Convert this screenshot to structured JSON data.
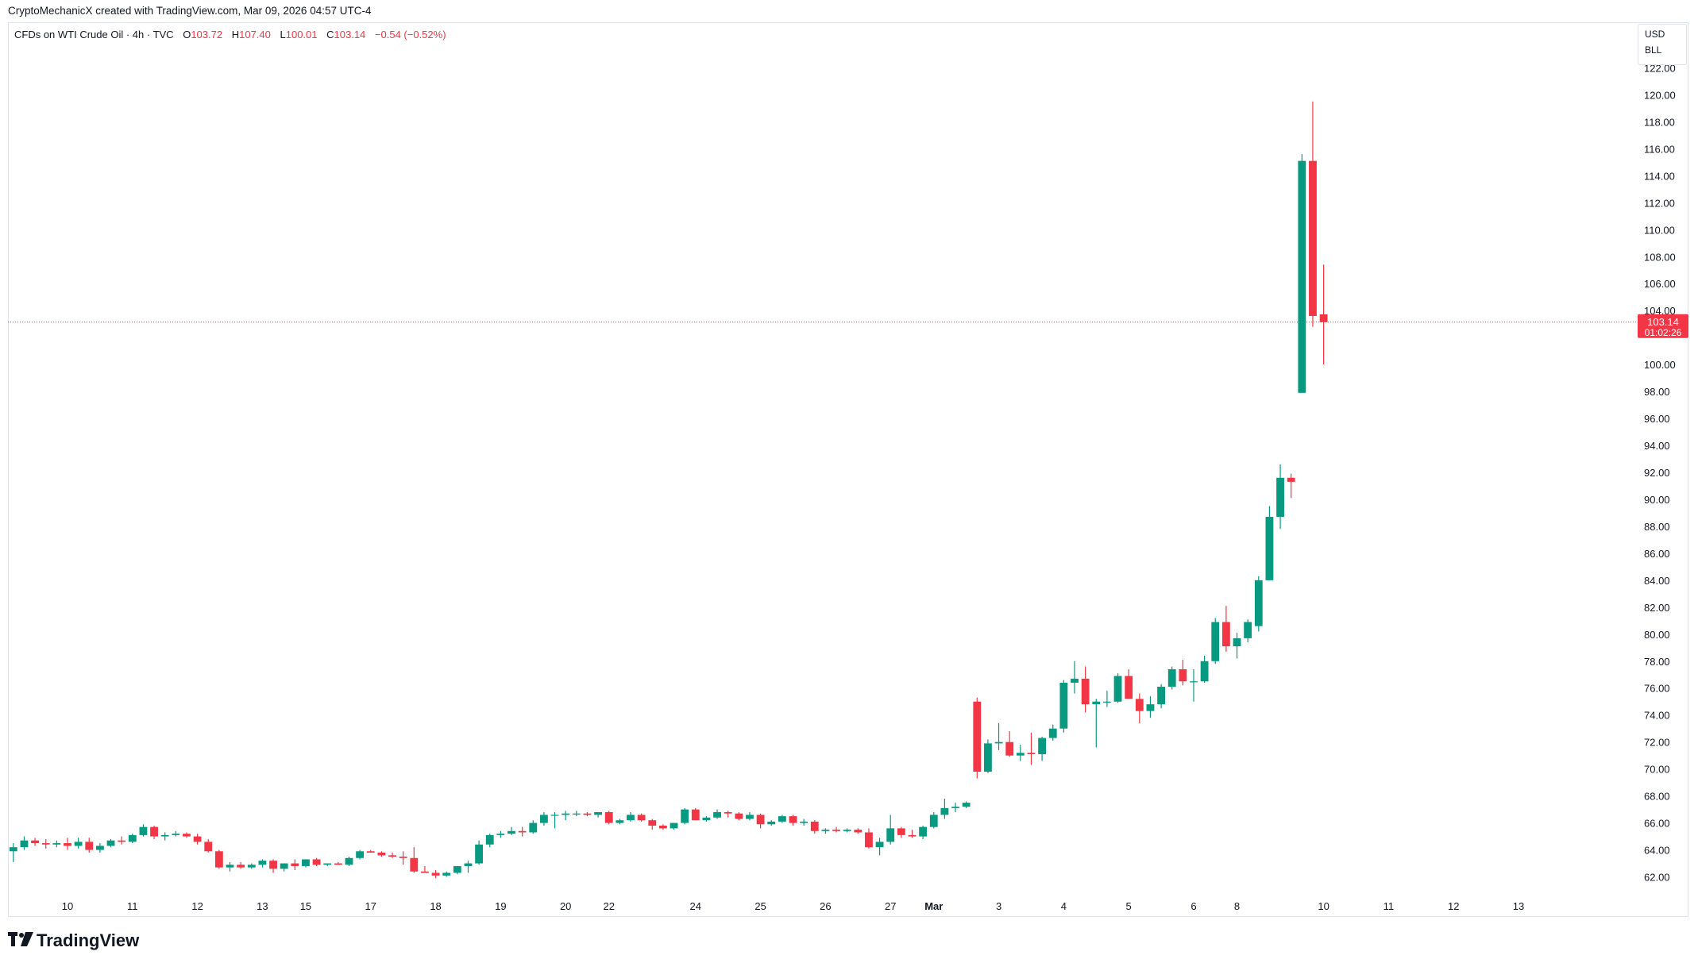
{
  "header": {
    "attribution": "CryptoMechanicX created with TradingView.com, Mar 09, 2026 04:57 UTC-4"
  },
  "legend": {
    "symbol": "CFDs on WTI Crude Oil · 4h · TVC",
    "o_label": "O",
    "o_value": "103.72",
    "h_label": "H",
    "h_value": "107.40",
    "l_label": "L",
    "l_value": "100.01",
    "c_label": "C",
    "c_value": "103.14",
    "change": "−0.54 (−0.52%)"
  },
  "unit_box": {
    "currency": "USD",
    "unit": "BLL"
  },
  "price_tag": {
    "price": "103.14",
    "countdown": "01:02:26"
  },
  "footer": {
    "logo_text": "TradingView"
  },
  "colors": {
    "up": "#089981",
    "down": "#f23645",
    "grid_text": "#131722",
    "border": "#e0e3eb"
  },
  "chart_data": {
    "type": "candlestick",
    "title": "CFDs on WTI Crude Oil · 4h · TVC",
    "ylim": [
      60.5,
      123.5
    ],
    "y_ticks": [
      62,
      64,
      66,
      68,
      70,
      72,
      74,
      76,
      78,
      80,
      82,
      84,
      86,
      88,
      90,
      92,
      94,
      96,
      98,
      100,
      104,
      106,
      108,
      110,
      112,
      114,
      116,
      118,
      120,
      122
    ],
    "x_labels": [
      "10",
      "11",
      "12",
      "13",
      "15",
      "17",
      "18",
      "19",
      "20",
      "22",
      "24",
      "25",
      "26",
      "27",
      "Mar",
      "3",
      "4",
      "5",
      "6",
      "8",
      "10",
      "11",
      "12",
      "13"
    ],
    "x_label_index": [
      5,
      11,
      17,
      23,
      27,
      33,
      39,
      45,
      51,
      55,
      63,
      69,
      75,
      81,
      85,
      91,
      97,
      103,
      109,
      113,
      121,
      127,
      133,
      139
    ],
    "x_range": [
      -0.5,
      150
    ],
    "last_price": 103.14,
    "candles": [
      {
        "o": 63.9,
        "h": 64.5,
        "l": 63.1,
        "c": 64.2
      },
      {
        "o": 64.2,
        "h": 65.0,
        "l": 64.0,
        "c": 64.7
      },
      {
        "o": 64.7,
        "h": 64.9,
        "l": 64.3,
        "c": 64.5
      },
      {
        "o": 64.5,
        "h": 64.8,
        "l": 64.1,
        "c": 64.4
      },
      {
        "o": 64.4,
        "h": 64.7,
        "l": 64.2,
        "c": 64.5
      },
      {
        "o": 64.5,
        "h": 64.9,
        "l": 64.0,
        "c": 64.3
      },
      {
        "o": 64.3,
        "h": 64.9,
        "l": 64.1,
        "c": 64.6
      },
      {
        "o": 64.6,
        "h": 64.9,
        "l": 63.8,
        "c": 64.0
      },
      {
        "o": 64.0,
        "h": 64.5,
        "l": 63.8,
        "c": 64.3
      },
      {
        "o": 64.3,
        "h": 64.8,
        "l": 64.2,
        "c": 64.7
      },
      {
        "o": 64.7,
        "h": 65.0,
        "l": 64.4,
        "c": 64.6
      },
      {
        "o": 64.6,
        "h": 65.2,
        "l": 64.5,
        "c": 65.1
      },
      {
        "o": 65.1,
        "h": 65.9,
        "l": 65.0,
        "c": 65.7
      },
      {
        "o": 65.7,
        "h": 65.8,
        "l": 64.8,
        "c": 65.0
      },
      {
        "o": 65.0,
        "h": 65.3,
        "l": 64.7,
        "c": 65.1
      },
      {
        "o": 65.1,
        "h": 65.4,
        "l": 65.0,
        "c": 65.2
      },
      {
        "o": 65.2,
        "h": 65.3,
        "l": 64.9,
        "c": 65.0
      },
      {
        "o": 65.0,
        "h": 65.2,
        "l": 64.4,
        "c": 64.6
      },
      {
        "o": 64.6,
        "h": 64.8,
        "l": 63.8,
        "c": 63.9
      },
      {
        "o": 63.9,
        "h": 64.0,
        "l": 62.6,
        "c": 62.7
      },
      {
        "o": 62.7,
        "h": 63.1,
        "l": 62.4,
        "c": 62.9
      },
      {
        "o": 62.9,
        "h": 63.1,
        "l": 62.6,
        "c": 62.7
      },
      {
        "o": 62.7,
        "h": 63.0,
        "l": 62.6,
        "c": 62.9
      },
      {
        "o": 62.9,
        "h": 63.3,
        "l": 62.7,
        "c": 63.2
      },
      {
        "o": 63.2,
        "h": 63.3,
        "l": 62.3,
        "c": 62.6
      },
      {
        "o": 62.6,
        "h": 63.0,
        "l": 62.4,
        "c": 63.0
      },
      {
        "o": 63.0,
        "h": 63.3,
        "l": 62.5,
        "c": 62.8
      },
      {
        "o": 62.8,
        "h": 63.3,
        "l": 62.7,
        "c": 63.3
      },
      {
        "o": 63.3,
        "h": 63.4,
        "l": 62.8,
        "c": 62.9
      },
      {
        "o": 62.9,
        "h": 63.0,
        "l": 62.8,
        "c": 63.0
      },
      {
        "o": 63.0,
        "h": 63.1,
        "l": 62.9,
        "c": 62.9
      },
      {
        "o": 62.9,
        "h": 63.5,
        "l": 62.8,
        "c": 63.4
      },
      {
        "o": 63.4,
        "h": 64.0,
        "l": 63.3,
        "c": 63.9
      },
      {
        "o": 63.9,
        "h": 64.0,
        "l": 63.8,
        "c": 63.8
      },
      {
        "o": 63.8,
        "h": 63.9,
        "l": 63.5,
        "c": 63.6
      },
      {
        "o": 63.6,
        "h": 63.8,
        "l": 63.4,
        "c": 63.5
      },
      {
        "o": 63.5,
        "h": 63.9,
        "l": 62.9,
        "c": 63.4
      },
      {
        "o": 63.4,
        "h": 64.2,
        "l": 62.3,
        "c": 62.4
      },
      {
        "o": 62.4,
        "h": 62.8,
        "l": 62.3,
        "c": 62.3
      },
      {
        "o": 62.3,
        "h": 62.5,
        "l": 61.9,
        "c": 62.1
      },
      {
        "o": 62.1,
        "h": 62.4,
        "l": 62.0,
        "c": 62.3
      },
      {
        "o": 62.3,
        "h": 62.8,
        "l": 62.2,
        "c": 62.8
      },
      {
        "o": 62.8,
        "h": 63.2,
        "l": 62.3,
        "c": 63.0
      },
      {
        "o": 63.0,
        "h": 64.7,
        "l": 62.9,
        "c": 64.4
      },
      {
        "o": 64.4,
        "h": 65.2,
        "l": 64.2,
        "c": 65.1
      },
      {
        "o": 65.1,
        "h": 65.4,
        "l": 64.9,
        "c": 65.2
      },
      {
        "o": 65.2,
        "h": 65.7,
        "l": 65.1,
        "c": 65.4
      },
      {
        "o": 65.4,
        "h": 65.7,
        "l": 65.0,
        "c": 65.3
      },
      {
        "o": 65.3,
        "h": 66.2,
        "l": 65.2,
        "c": 66.0
      },
      {
        "o": 66.0,
        "h": 66.8,
        "l": 65.8,
        "c": 66.6
      },
      {
        "o": 66.6,
        "h": 66.8,
        "l": 65.6,
        "c": 66.6
      },
      {
        "o": 66.6,
        "h": 66.9,
        "l": 66.2,
        "c": 66.7
      },
      {
        "o": 66.7,
        "h": 66.9,
        "l": 66.5,
        "c": 66.7
      },
      {
        "o": 66.7,
        "h": 66.8,
        "l": 66.5,
        "c": 66.6
      },
      {
        "o": 66.6,
        "h": 66.8,
        "l": 66.4,
        "c": 66.8
      },
      {
        "o": 66.8,
        "h": 66.9,
        "l": 65.9,
        "c": 66.0
      },
      {
        "o": 66.0,
        "h": 66.3,
        "l": 65.9,
        "c": 66.2
      },
      {
        "o": 66.2,
        "h": 66.8,
        "l": 66.1,
        "c": 66.6
      },
      {
        "o": 66.6,
        "h": 66.7,
        "l": 66.1,
        "c": 66.2
      },
      {
        "o": 66.2,
        "h": 66.3,
        "l": 65.5,
        "c": 65.8
      },
      {
        "o": 65.8,
        "h": 65.9,
        "l": 65.5,
        "c": 65.6
      },
      {
        "o": 65.6,
        "h": 66.0,
        "l": 65.5,
        "c": 66.0
      },
      {
        "o": 66.0,
        "h": 67.1,
        "l": 65.9,
        "c": 67.0
      },
      {
        "o": 67.0,
        "h": 67.1,
        "l": 66.2,
        "c": 66.2
      },
      {
        "o": 66.2,
        "h": 66.5,
        "l": 66.1,
        "c": 66.4
      },
      {
        "o": 66.4,
        "h": 67.0,
        "l": 66.3,
        "c": 66.8
      },
      {
        "o": 66.8,
        "h": 66.9,
        "l": 66.4,
        "c": 66.7
      },
      {
        "o": 66.7,
        "h": 66.8,
        "l": 66.2,
        "c": 66.3
      },
      {
        "o": 66.3,
        "h": 66.8,
        "l": 66.2,
        "c": 66.6
      },
      {
        "o": 66.6,
        "h": 66.7,
        "l": 65.6,
        "c": 65.9
      },
      {
        "o": 65.9,
        "h": 66.2,
        "l": 65.8,
        "c": 66.1
      },
      {
        "o": 66.1,
        "h": 66.6,
        "l": 66.0,
        "c": 66.5
      },
      {
        "o": 66.5,
        "h": 66.6,
        "l": 65.8,
        "c": 66.0
      },
      {
        "o": 66.0,
        "h": 66.3,
        "l": 65.8,
        "c": 66.1
      },
      {
        "o": 66.1,
        "h": 66.2,
        "l": 65.2,
        "c": 65.4
      },
      {
        "o": 65.4,
        "h": 65.6,
        "l": 65.2,
        "c": 65.5
      },
      {
        "o": 65.5,
        "h": 65.7,
        "l": 65.3,
        "c": 65.4
      },
      {
        "o": 65.4,
        "h": 65.6,
        "l": 65.3,
        "c": 65.5
      },
      {
        "o": 65.5,
        "h": 65.6,
        "l": 65.2,
        "c": 65.3
      },
      {
        "o": 65.3,
        "h": 65.6,
        "l": 64.1,
        "c": 64.2
      },
      {
        "o": 64.2,
        "h": 64.9,
        "l": 63.6,
        "c": 64.6
      },
      {
        "o": 64.6,
        "h": 66.6,
        "l": 64.4,
        "c": 65.6
      },
      {
        "o": 65.6,
        "h": 65.7,
        "l": 64.9,
        "c": 65.1
      },
      {
        "o": 65.1,
        "h": 65.5,
        "l": 64.9,
        "c": 65.0
      },
      {
        "o": 65.0,
        "h": 65.8,
        "l": 64.8,
        "c": 65.7
      },
      {
        "o": 65.7,
        "h": 66.8,
        "l": 65.6,
        "c": 66.6
      },
      {
        "o": 66.6,
        "h": 67.8,
        "l": 66.3,
        "c": 67.1
      },
      {
        "o": 67.1,
        "h": 67.5,
        "l": 66.8,
        "c": 67.2
      },
      {
        "o": 67.2,
        "h": 67.6,
        "l": 67.1,
        "c": 67.5
      },
      {
        "o": 75.0,
        "h": 75.3,
        "l": 69.3,
        "c": 69.8
      },
      {
        "o": 69.8,
        "h": 72.2,
        "l": 69.7,
        "c": 71.9
      },
      {
        "o": 71.9,
        "h": 73.4,
        "l": 71.4,
        "c": 72.0
      },
      {
        "o": 72.0,
        "h": 72.8,
        "l": 70.9,
        "c": 71.0
      },
      {
        "o": 71.0,
        "h": 71.8,
        "l": 70.6,
        "c": 71.2
      },
      {
        "o": 71.2,
        "h": 72.7,
        "l": 70.3,
        "c": 71.1
      },
      {
        "o": 71.1,
        "h": 72.4,
        "l": 70.6,
        "c": 72.3
      },
      {
        "o": 72.3,
        "h": 73.3,
        "l": 72.1,
        "c": 73.0
      },
      {
        "o": 73.0,
        "h": 76.6,
        "l": 72.7,
        "c": 76.4
      },
      {
        "o": 76.4,
        "h": 78.0,
        "l": 75.6,
        "c": 76.7
      },
      {
        "o": 76.7,
        "h": 77.6,
        "l": 74.2,
        "c": 74.8
      },
      {
        "o": 74.8,
        "h": 75.2,
        "l": 71.6,
        "c": 75.0
      },
      {
        "o": 75.0,
        "h": 75.8,
        "l": 74.6,
        "c": 75.0
      },
      {
        "o": 75.0,
        "h": 77.1,
        "l": 74.9,
        "c": 76.9
      },
      {
        "o": 76.9,
        "h": 77.4,
        "l": 75.2,
        "c": 75.2
      },
      {
        "o": 75.2,
        "h": 75.6,
        "l": 73.4,
        "c": 74.3
      },
      {
        "o": 74.3,
        "h": 75.4,
        "l": 73.8,
        "c": 74.8
      },
      {
        "o": 74.8,
        "h": 76.3,
        "l": 74.5,
        "c": 76.1
      },
      {
        "o": 76.1,
        "h": 77.6,
        "l": 75.9,
        "c": 77.4
      },
      {
        "o": 77.4,
        "h": 78.1,
        "l": 76.2,
        "c": 76.5
      },
      {
        "o": 76.5,
        "h": 77.4,
        "l": 75.0,
        "c": 76.5
      },
      {
        "o": 76.5,
        "h": 78.4,
        "l": 76.4,
        "c": 78.0
      },
      {
        "o": 78.0,
        "h": 81.2,
        "l": 77.8,
        "c": 80.9
      },
      {
        "o": 80.9,
        "h": 82.1,
        "l": 78.7,
        "c": 79.1
      },
      {
        "o": 79.1,
        "h": 80.1,
        "l": 78.2,
        "c": 79.7
      },
      {
        "o": 79.7,
        "h": 81.1,
        "l": 79.4,
        "c": 80.9
      },
      {
        "o": 80.6,
        "h": 84.3,
        "l": 80.2,
        "c": 84.0
      },
      {
        "o": 84.0,
        "h": 89.5,
        "l": 84.0,
        "c": 88.7
      },
      {
        "o": 88.7,
        "h": 92.6,
        "l": 87.8,
        "c": 91.6
      },
      {
        "o": 91.6,
        "h": 91.9,
        "l": 90.1,
        "c": 91.3
      },
      {
        "o": 97.9,
        "h": 115.6,
        "l": 97.9,
        "c": 115.1
      },
      {
        "o": 115.1,
        "h": 119.5,
        "l": 102.8,
        "c": 103.6
      },
      {
        "o": 103.72,
        "h": 107.4,
        "l": 100.01,
        "c": 103.14
      }
    ]
  }
}
